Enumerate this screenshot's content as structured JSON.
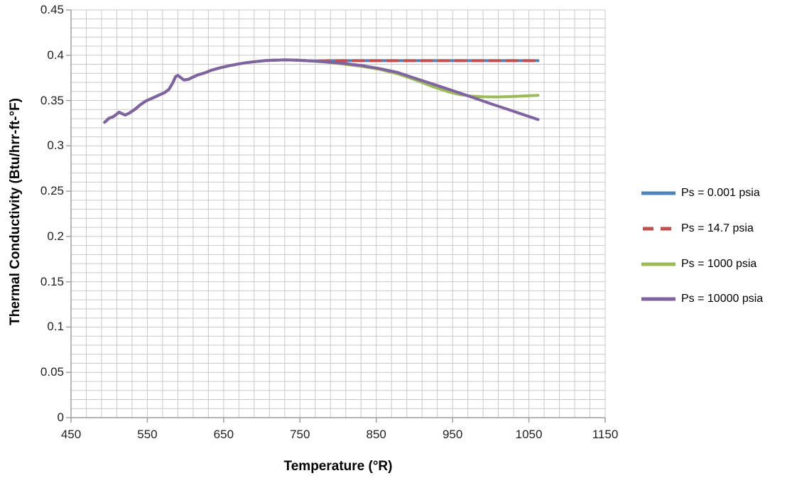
{
  "chart_data": {
    "type": "line",
    "title": "",
    "xlabel": "Temperature (°R)",
    "ylabel": "Thermal Conductivity (Btu/hrr-ft-°F)",
    "grid": "major and minor gridlines on, light gray",
    "legend_position": "right, outside plot",
    "x_axis": {
      "min": 450,
      "max": 1150,
      "major_step": 100,
      "minor_step": 20,
      "tick_labels": [
        "450",
        "550",
        "650",
        "750",
        "850",
        "950",
        "1050",
        "1150"
      ]
    },
    "y_axis": {
      "min": 0,
      "max": 0.45,
      "major_step": 0.05,
      "minor_step": 0.01,
      "tick_labels": [
        "0",
        "0.05",
        "0.1",
        "0.15",
        "0.2",
        "0.25",
        "0.3",
        "0.35",
        "0.4",
        "0.45"
      ]
    },
    "common_points_note": "All four pressure curves coincide from 494 to 764 °R",
    "common_points": [
      [
        494,
        0.326
      ],
      [
        500,
        0.3305
      ],
      [
        505,
        0.332
      ],
      [
        509,
        0.3345
      ],
      [
        513,
        0.3372
      ],
      [
        517,
        0.3355
      ],
      [
        521,
        0.334
      ],
      [
        527,
        0.3365
      ],
      [
        534,
        0.3405
      ],
      [
        541,
        0.3455
      ],
      [
        548,
        0.3495
      ],
      [
        556,
        0.3525
      ],
      [
        564,
        0.3555
      ],
      [
        572,
        0.3585
      ],
      [
        578,
        0.362
      ],
      [
        583,
        0.369
      ],
      [
        587,
        0.3765
      ],
      [
        590,
        0.3778
      ],
      [
        594,
        0.3752
      ],
      [
        598,
        0.3727
      ],
      [
        604,
        0.3735
      ],
      [
        610,
        0.376
      ],
      [
        617,
        0.3785
      ],
      [
        625,
        0.3805
      ],
      [
        634,
        0.3835
      ],
      [
        645,
        0.386
      ],
      [
        656,
        0.3882
      ],
      [
        668,
        0.3902
      ],
      [
        680,
        0.3918
      ],
      [
        692,
        0.393
      ],
      [
        704,
        0.394
      ],
      [
        716,
        0.3946
      ],
      [
        728,
        0.3948
      ],
      [
        740,
        0.3947
      ],
      [
        752,
        0.3943
      ],
      [
        764,
        0.3937
      ]
    ],
    "series": [
      {
        "name": "Ps = 0.001 psia",
        "color": "#4F81BD",
        "dash": "",
        "width": 4,
        "includes_common": true,
        "points": [
          [
            790,
            0.394
          ],
          [
            1062,
            0.394
          ]
        ]
      },
      {
        "name": "Ps = 14.7 psia",
        "color": "#C0504D",
        "dash": "14 10",
        "width": 4,
        "includes_common": true,
        "points": [
          [
            790,
            0.394
          ],
          [
            1062,
            0.394
          ]
        ]
      },
      {
        "name": "Ps = 1000 psia",
        "color": "#9BBB59",
        "dash": "",
        "width": 4,
        "includes_common": true,
        "points": [
          [
            782,
            0.3925
          ],
          [
            805,
            0.3905
          ],
          [
            830,
            0.3878
          ],
          [
            855,
            0.3843
          ],
          [
            878,
            0.3795
          ],
          [
            900,
            0.3732
          ],
          [
            925,
            0.365
          ],
          [
            945,
            0.3595
          ],
          [
            960,
            0.3565
          ],
          [
            975,
            0.3548
          ],
          [
            990,
            0.3542
          ],
          [
            1010,
            0.354
          ],
          [
            1030,
            0.3546
          ],
          [
            1062,
            0.3557
          ]
        ]
      },
      {
        "name": "Ps = 10000 psia",
        "color": "#8064A2",
        "dash": "",
        "width": 4,
        "includes_common": true,
        "points": [
          [
            782,
            0.3928
          ],
          [
            805,
            0.3912
          ],
          [
            830,
            0.3888
          ],
          [
            855,
            0.3852
          ],
          [
            878,
            0.381
          ],
          [
            900,
            0.3748
          ],
          [
            925,
            0.368
          ],
          [
            950,
            0.361
          ],
          [
            975,
            0.3538
          ],
          [
            1000,
            0.3465
          ],
          [
            1025,
            0.3395
          ],
          [
            1045,
            0.3338
          ],
          [
            1062,
            0.329
          ]
        ]
      }
    ]
  },
  "colors": {
    "gridline": "#c9c9c9",
    "axis_line": "#9b9b9b",
    "tick_text": "#1f1f1f",
    "background": "#ffffff"
  }
}
